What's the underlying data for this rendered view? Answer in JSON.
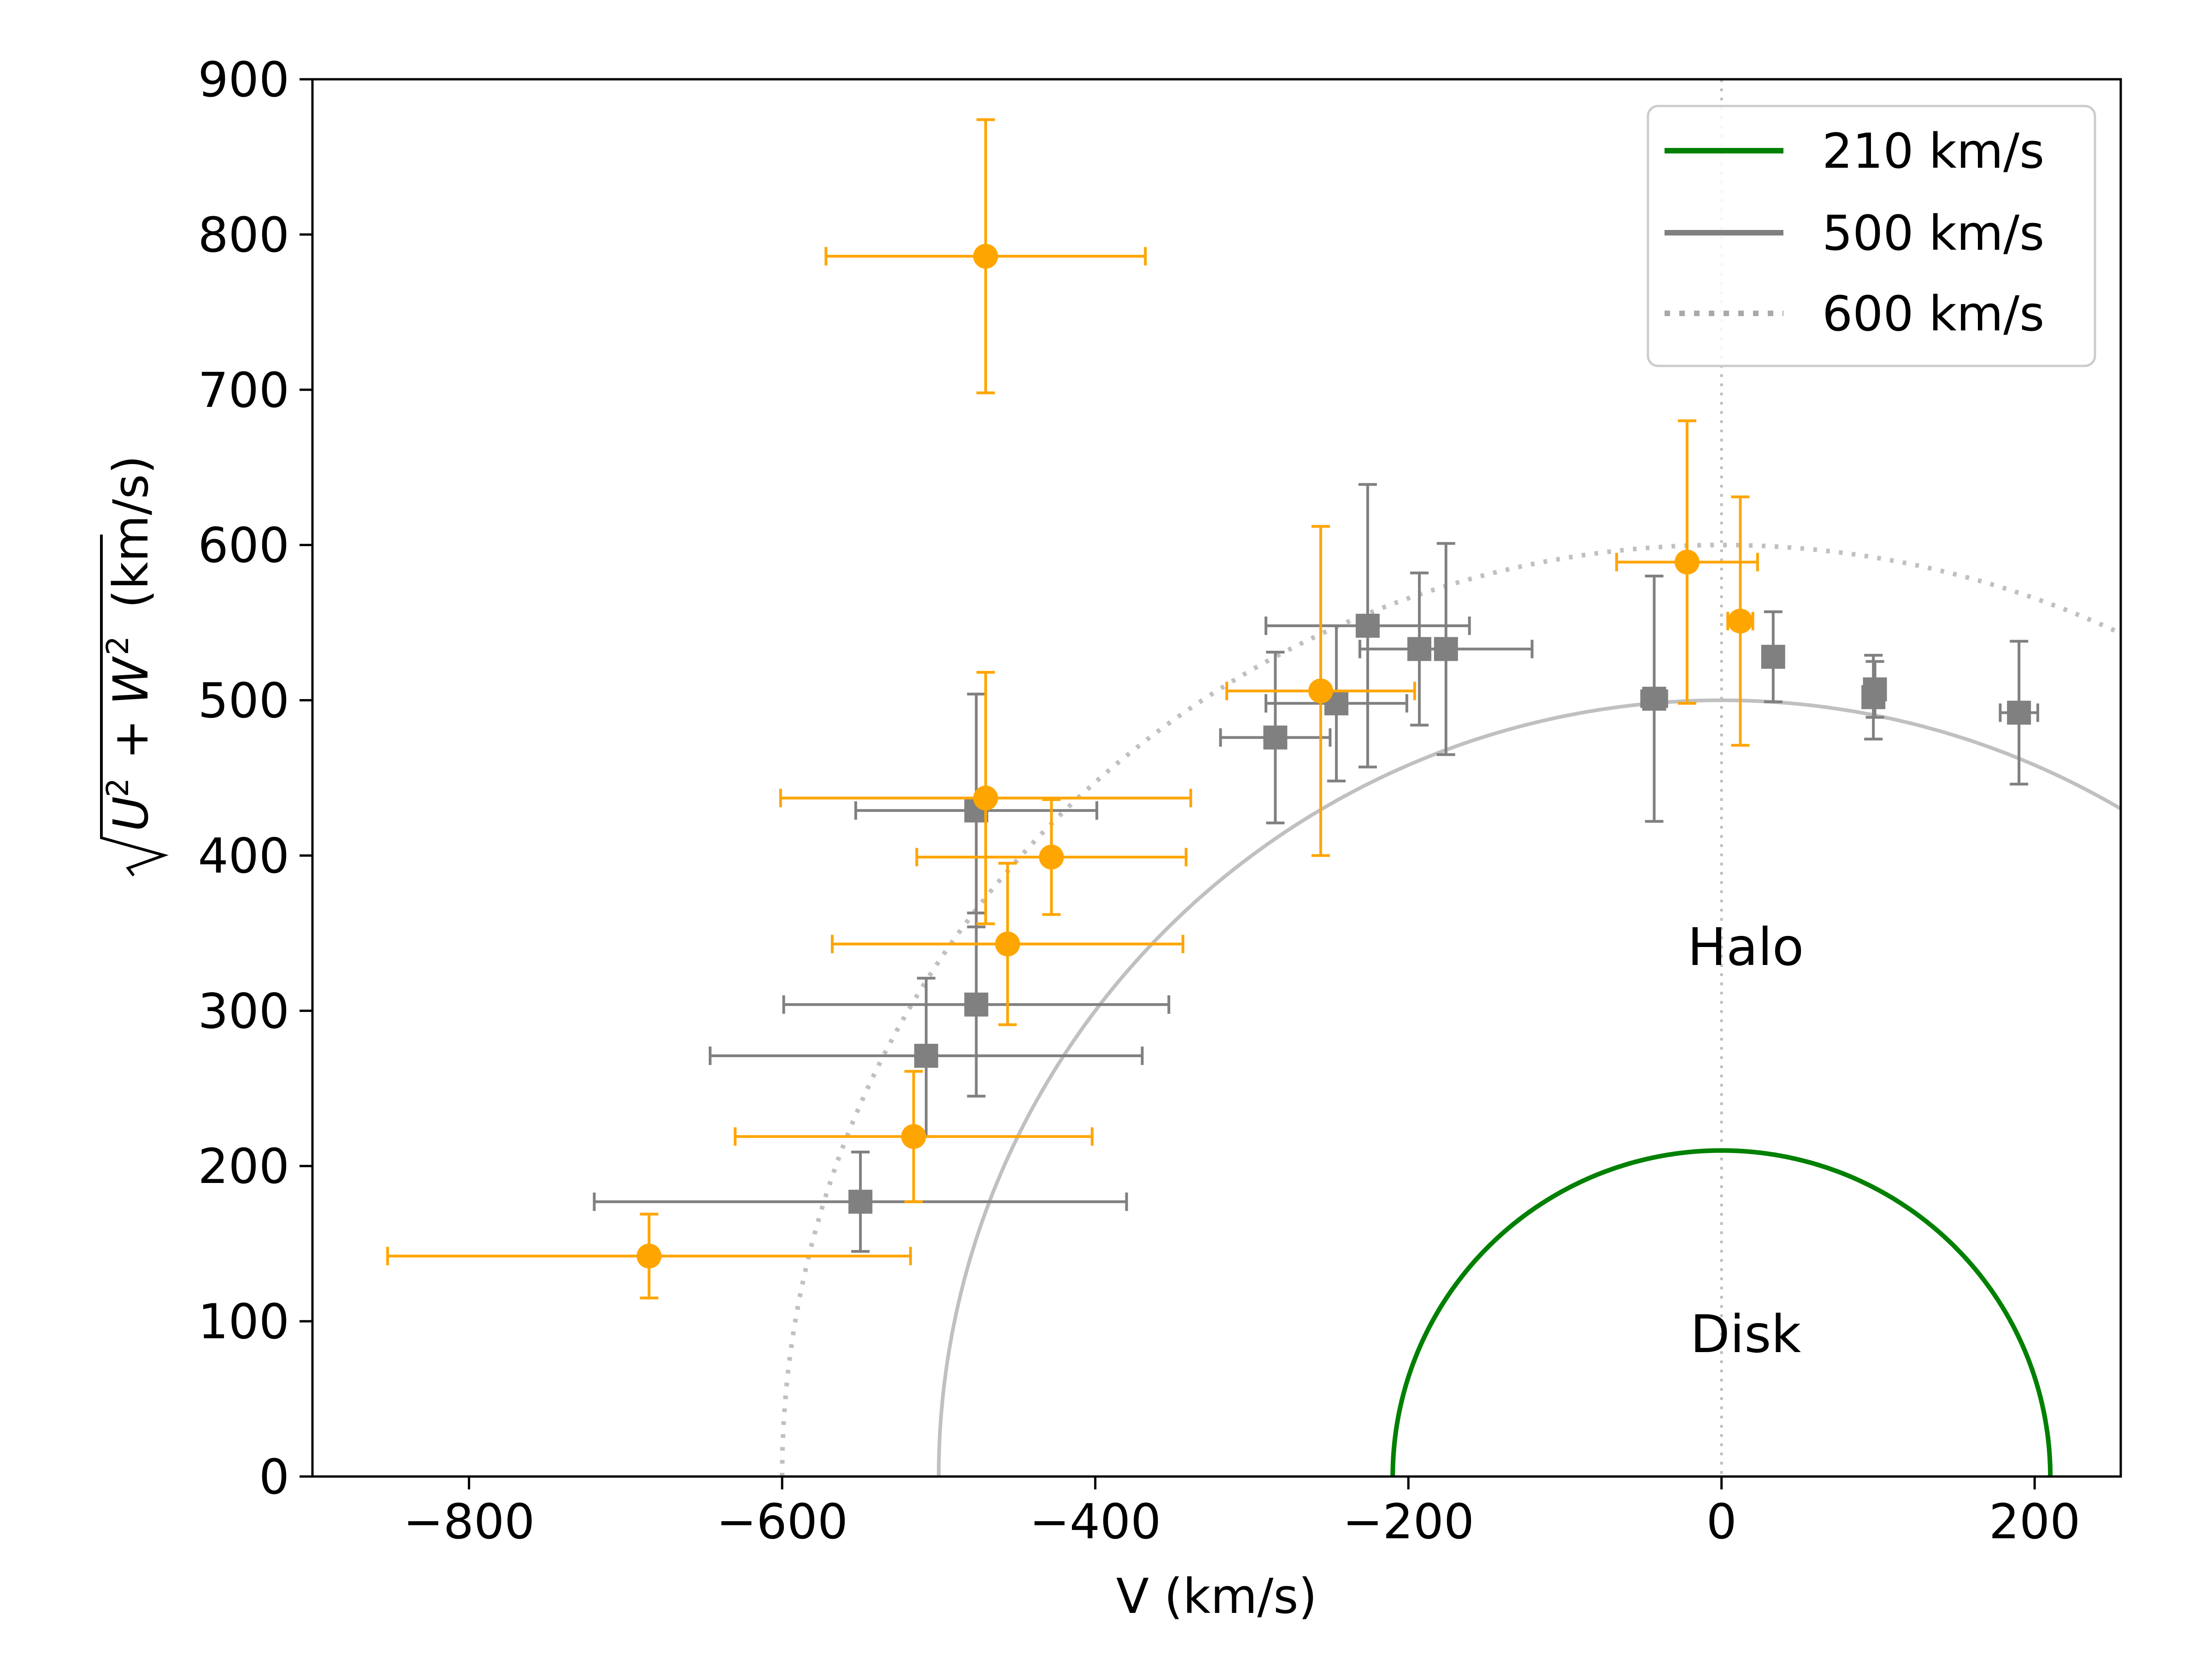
{
  "chart_data": {
    "type": "scatter",
    "title": "",
    "xlabel": "V (km/s)",
    "ylabel": "(km/s)",
    "ylabel_math": {
      "root": "√",
      "u": "U",
      "plus": "+",
      "w": "W",
      "sup": "2"
    },
    "xlim": [
      -900,
      255
    ],
    "ylim": [
      0,
      900
    ],
    "xticks": [
      -800,
      -600,
      -400,
      -200,
      0,
      200
    ],
    "yticks": [
      0,
      100,
      200,
      300,
      400,
      500,
      600,
      700,
      800,
      900
    ],
    "xtick_labels": [
      "−800",
      "−600",
      "−400",
      "−200",
      "0",
      "200"
    ],
    "ytick_labels": [
      "0",
      "100",
      "200",
      "300",
      "400",
      "500",
      "600",
      "700",
      "800",
      "900"
    ],
    "legend_position": "top-right",
    "circles": [
      {
        "name": "210 km/s",
        "radius": 210,
        "color": "#008000",
        "style": "solid"
      },
      {
        "name": "500 km/s",
        "radius": 500,
        "color": "#808080",
        "style": "solid"
      },
      {
        "name": "600 km/s",
        "radius": 600,
        "color": "#808080",
        "style": "dotted"
      }
    ],
    "reference_line": {
      "x": 0,
      "style": "dotted",
      "color": "#c0c0c0"
    },
    "annotations": [
      {
        "text": "Halo",
        "x": 15,
        "y": 340
      },
      {
        "text": "Disk",
        "x": 15,
        "y": 90
      }
    ],
    "series": [
      {
        "name": "gray squares",
        "marker": "square",
        "color": "#808080",
        "points": [
          {
            "x": -550,
            "y": 177,
            "xerr": 170,
            "yerr_low": 32,
            "yerr_high": 32
          },
          {
            "x": -508,
            "y": 271,
            "xerr": 138,
            "yerr_low": 52,
            "yerr_high": 50
          },
          {
            "x": -476,
            "y": 304,
            "xerr": 123,
            "yerr_low": 59,
            "yerr_high": 59
          },
          {
            "x": -476,
            "y": 429,
            "xerr": 77,
            "yerr_low": 75,
            "yerr_high": 75
          },
          {
            "x": -285,
            "y": 476,
            "xerr": 35,
            "yerr_low": 55,
            "yerr_high": 55
          },
          {
            "x": -246,
            "y": 498,
            "xerr": 45,
            "yerr_low": 50,
            "yerr_high": 50
          },
          {
            "x": -226,
            "y": 548,
            "xerr": 65,
            "yerr_low": 91,
            "yerr_high": 91
          },
          {
            "x": -193,
            "y": 533,
            "xerr": 5,
            "yerr_low": 49,
            "yerr_high": 49
          },
          {
            "x": -176,
            "y": 533,
            "xerr": 55,
            "yerr_low": 68,
            "yerr_high": 68
          },
          {
            "x": -43,
            "y": 501,
            "xerr": 8,
            "yerr_low": 79,
            "yerr_high": 79
          },
          {
            "x": 33,
            "y": 528,
            "xerr": 5,
            "yerr_low": 29,
            "yerr_high": 29
          },
          {
            "x": 97,
            "y": 502,
            "xerr": 3,
            "yerr_low": 27,
            "yerr_high": 27
          },
          {
            "x": 98,
            "y": 507,
            "xerr": 3,
            "yerr_low": 18,
            "yerr_high": 18
          },
          {
            "x": 190,
            "y": 492,
            "xerr": 12,
            "yerr_low": 46,
            "yerr_high": 46
          }
        ]
      },
      {
        "name": "orange circles",
        "marker": "circle",
        "color": "#FFA500",
        "points": [
          {
            "x": -685,
            "y": 142,
            "xerr": 167,
            "yerr_low": 27,
            "yerr_high": 27
          },
          {
            "x": -516,
            "y": 219,
            "xerr": 114,
            "yerr_low": 42,
            "yerr_high": 42
          },
          {
            "x": -456,
            "y": 343,
            "xerr": 112,
            "yerr_low": 52,
            "yerr_high": 52
          },
          {
            "x": -428,
            "y": 399,
            "xerr": 86,
            "yerr_low": 37,
            "yerr_high": 37
          },
          {
            "x": -470,
            "y": 437,
            "xerr": 131,
            "yerr_low": 81,
            "yerr_high": 81
          },
          {
            "x": -470,
            "y": 786,
            "xerr": 102,
            "yerr_low": 88,
            "yerr_high": 88
          },
          {
            "x": -256,
            "y": 506,
            "xerr": 60,
            "yerr_low": 106,
            "yerr_high": 106
          },
          {
            "x": -22,
            "y": 589,
            "xerr": 45,
            "yerr_low": 91,
            "yerr_high": 91
          },
          {
            "x": 12,
            "y": 551,
            "xerr": 8,
            "yerr_low": 80,
            "yerr_high": 80
          }
        ]
      }
    ]
  }
}
